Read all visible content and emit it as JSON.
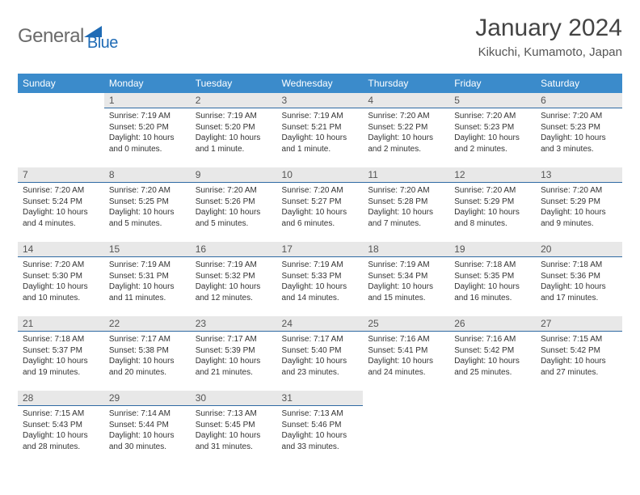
{
  "brand": {
    "part1": "General",
    "part2": "Blue"
  },
  "title": "January 2024",
  "location": "Kikuchi, Kumamoto, Japan",
  "colors": {
    "header_bg": "#3b8bcb",
    "header_text": "#ffffff",
    "daynum_bg": "#e8e8e8",
    "daynum_border": "#2f6aa3",
    "body_text": "#333333",
    "brand_gray": "#6b6b6b",
    "brand_blue": "#1f6bb5"
  },
  "weekdays": [
    "Sunday",
    "Monday",
    "Tuesday",
    "Wednesday",
    "Thursday",
    "Friday",
    "Saturday"
  ],
  "first_weekday_index": 1,
  "days": [
    {
      "n": 1,
      "sunrise": "7:19 AM",
      "sunset": "5:20 PM",
      "daylight": "10 hours and 0 minutes."
    },
    {
      "n": 2,
      "sunrise": "7:19 AM",
      "sunset": "5:20 PM",
      "daylight": "10 hours and 1 minute."
    },
    {
      "n": 3,
      "sunrise": "7:19 AM",
      "sunset": "5:21 PM",
      "daylight": "10 hours and 1 minute."
    },
    {
      "n": 4,
      "sunrise": "7:20 AM",
      "sunset": "5:22 PM",
      "daylight": "10 hours and 2 minutes."
    },
    {
      "n": 5,
      "sunrise": "7:20 AM",
      "sunset": "5:23 PM",
      "daylight": "10 hours and 2 minutes."
    },
    {
      "n": 6,
      "sunrise": "7:20 AM",
      "sunset": "5:23 PM",
      "daylight": "10 hours and 3 minutes."
    },
    {
      "n": 7,
      "sunrise": "7:20 AM",
      "sunset": "5:24 PM",
      "daylight": "10 hours and 4 minutes."
    },
    {
      "n": 8,
      "sunrise": "7:20 AM",
      "sunset": "5:25 PM",
      "daylight": "10 hours and 5 minutes."
    },
    {
      "n": 9,
      "sunrise": "7:20 AM",
      "sunset": "5:26 PM",
      "daylight": "10 hours and 5 minutes."
    },
    {
      "n": 10,
      "sunrise": "7:20 AM",
      "sunset": "5:27 PM",
      "daylight": "10 hours and 6 minutes."
    },
    {
      "n": 11,
      "sunrise": "7:20 AM",
      "sunset": "5:28 PM",
      "daylight": "10 hours and 7 minutes."
    },
    {
      "n": 12,
      "sunrise": "7:20 AM",
      "sunset": "5:29 PM",
      "daylight": "10 hours and 8 minutes."
    },
    {
      "n": 13,
      "sunrise": "7:20 AM",
      "sunset": "5:29 PM",
      "daylight": "10 hours and 9 minutes."
    },
    {
      "n": 14,
      "sunrise": "7:20 AM",
      "sunset": "5:30 PM",
      "daylight": "10 hours and 10 minutes."
    },
    {
      "n": 15,
      "sunrise": "7:19 AM",
      "sunset": "5:31 PM",
      "daylight": "10 hours and 11 minutes."
    },
    {
      "n": 16,
      "sunrise": "7:19 AM",
      "sunset": "5:32 PM",
      "daylight": "10 hours and 12 minutes."
    },
    {
      "n": 17,
      "sunrise": "7:19 AM",
      "sunset": "5:33 PM",
      "daylight": "10 hours and 14 minutes."
    },
    {
      "n": 18,
      "sunrise": "7:19 AM",
      "sunset": "5:34 PM",
      "daylight": "10 hours and 15 minutes."
    },
    {
      "n": 19,
      "sunrise": "7:18 AM",
      "sunset": "5:35 PM",
      "daylight": "10 hours and 16 minutes."
    },
    {
      "n": 20,
      "sunrise": "7:18 AM",
      "sunset": "5:36 PM",
      "daylight": "10 hours and 17 minutes."
    },
    {
      "n": 21,
      "sunrise": "7:18 AM",
      "sunset": "5:37 PM",
      "daylight": "10 hours and 19 minutes."
    },
    {
      "n": 22,
      "sunrise": "7:17 AM",
      "sunset": "5:38 PM",
      "daylight": "10 hours and 20 minutes."
    },
    {
      "n": 23,
      "sunrise": "7:17 AM",
      "sunset": "5:39 PM",
      "daylight": "10 hours and 21 minutes."
    },
    {
      "n": 24,
      "sunrise": "7:17 AM",
      "sunset": "5:40 PM",
      "daylight": "10 hours and 23 minutes."
    },
    {
      "n": 25,
      "sunrise": "7:16 AM",
      "sunset": "5:41 PM",
      "daylight": "10 hours and 24 minutes."
    },
    {
      "n": 26,
      "sunrise": "7:16 AM",
      "sunset": "5:42 PM",
      "daylight": "10 hours and 25 minutes."
    },
    {
      "n": 27,
      "sunrise": "7:15 AM",
      "sunset": "5:42 PM",
      "daylight": "10 hours and 27 minutes."
    },
    {
      "n": 28,
      "sunrise": "7:15 AM",
      "sunset": "5:43 PM",
      "daylight": "10 hours and 28 minutes."
    },
    {
      "n": 29,
      "sunrise": "7:14 AM",
      "sunset": "5:44 PM",
      "daylight": "10 hours and 30 minutes."
    },
    {
      "n": 30,
      "sunrise": "7:13 AM",
      "sunset": "5:45 PM",
      "daylight": "10 hours and 31 minutes."
    },
    {
      "n": 31,
      "sunrise": "7:13 AM",
      "sunset": "5:46 PM",
      "daylight": "10 hours and 33 minutes."
    }
  ],
  "labels": {
    "sunrise": "Sunrise:",
    "sunset": "Sunset:",
    "daylight": "Daylight:"
  }
}
